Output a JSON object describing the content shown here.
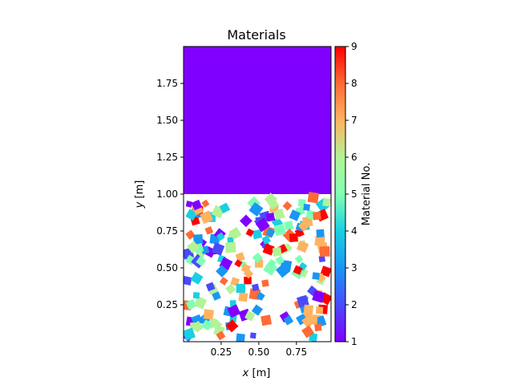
{
  "chart_data": {
    "type": "heatmap",
    "title": "Materials",
    "xlabel_var": "x",
    "xlabel_unit": " [m]",
    "ylabel_var": "y",
    "ylabel_unit": " [m]",
    "xlim": [
      0.0,
      0.98
    ],
    "ylim": [
      0.0,
      2.0
    ],
    "xticks": [
      0.25,
      0.5,
      0.75
    ],
    "xtick_labels": [
      "0.25",
      "0.50",
      "0.75"
    ],
    "yticks": [
      0.25,
      0.5,
      0.75,
      1.0,
      1.25,
      1.5,
      1.75
    ],
    "ytick_labels": [
      "0.25",
      "0.50",
      "0.75",
      "1.00",
      "1.25",
      "1.50",
      "1.75"
    ],
    "top_layer": {
      "material": 1,
      "y_from": 1.0,
      "y_to": 2.0
    },
    "colorbar": {
      "label": "Material No.",
      "min": 1,
      "max": 9,
      "ticks": [
        1,
        2,
        3,
        4,
        5,
        6,
        7,
        8,
        9
      ],
      "colormap": "rainbow"
    },
    "grains": {
      "description_note": "",
      "count": 180
    },
    "grid": false,
    "colors": {
      "axis": "#000000",
      "background": "#ffffff"
    }
  }
}
